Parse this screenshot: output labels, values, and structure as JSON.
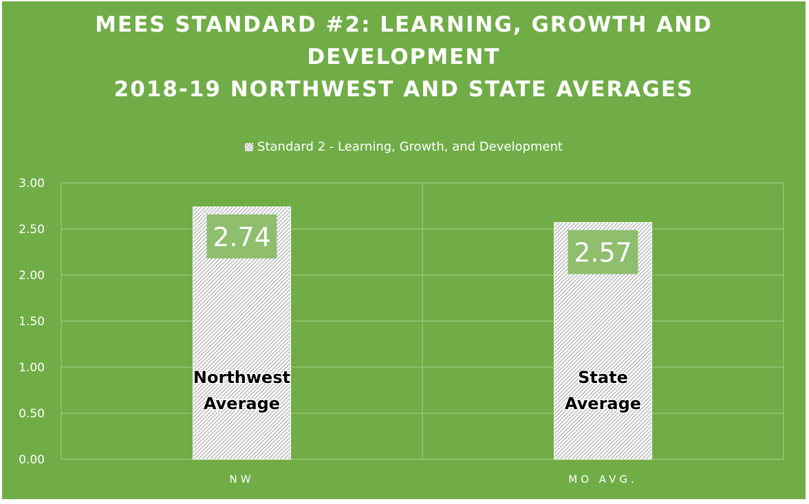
{
  "chart_data": {
    "type": "bar",
    "title_lines": [
      "MEES STANDARD #2: LEARNING, GROWTH AND",
      "DEVELOPMENT",
      "2018-19 NORTHWEST AND STATE AVERAGES"
    ],
    "legend": "Standard 2 - Learning, Growth, and Development",
    "legend_position": "top",
    "categories": [
      "NW",
      "MO AVG."
    ],
    "series": [
      {
        "name": "Standard 2 - Learning, Growth, and Development",
        "values": [
          2.74,
          2.57
        ]
      }
    ],
    "data_labels": [
      "2.74",
      "2.57"
    ],
    "annotations": [
      [
        "Northwest",
        "Average"
      ],
      [
        "State",
        "Average"
      ]
    ],
    "yticks": [
      "0.00",
      "0.50",
      "1.00",
      "1.50",
      "2.00",
      "2.50",
      "3.00"
    ],
    "ylim": [
      0,
      3
    ],
    "grid": true,
    "colors": {
      "background": "#70ad47",
      "gridline": "#a9d08e",
      "text": "#ffffff",
      "bar_fill": "#ffffff",
      "bar_hatch": "#7f7f7f",
      "label_box": "#8fbe6d"
    }
  }
}
